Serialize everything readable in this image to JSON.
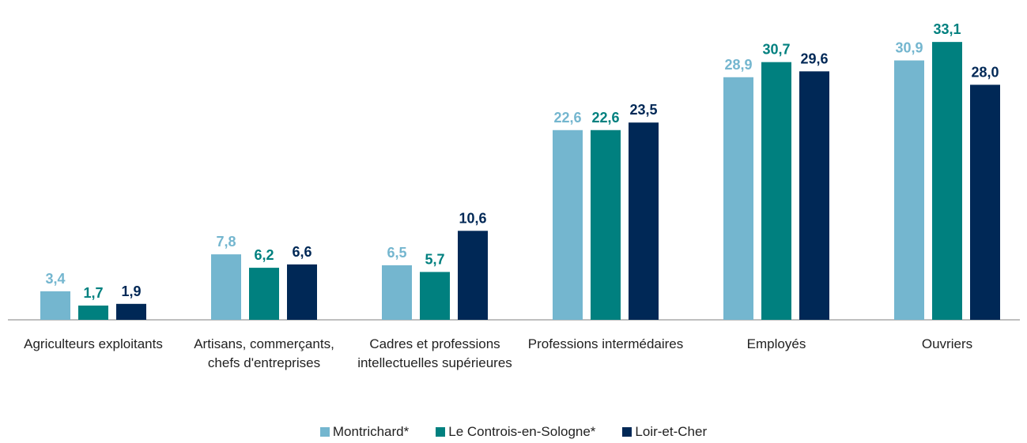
{
  "chart_data": {
    "type": "bar",
    "categories": [
      "Agriculteurs exploitants",
      "Artisans, commerçants, chefs d'entreprises",
      "Cadres et professions intellectuelles supérieures",
      "Professions intermédaires",
      "Employés",
      "Ouvriers"
    ],
    "series": [
      {
        "name": "Montrichard*",
        "color": "#74b6cf",
        "values": [
          3.4,
          7.8,
          6.5,
          22.6,
          28.9,
          30.9
        ],
        "value_labels": [
          "3,4",
          "7,8",
          "6,5",
          "22,6",
          "28,9",
          "30,9"
        ]
      },
      {
        "name": "Le Controis-en-Sologne*",
        "color": "#00807f",
        "values": [
          1.7,
          6.2,
          5.7,
          22.6,
          30.7,
          33.1
        ],
        "value_labels": [
          "1,7",
          "6,2",
          "5,7",
          "22,6",
          "30,7",
          "33,1"
        ]
      },
      {
        "name": "Loir-et-Cher",
        "color": "#002856",
        "values": [
          1.9,
          6.6,
          10.6,
          23.5,
          29.6,
          28.0
        ],
        "value_labels": [
          "1,9",
          "6,6",
          "10,6",
          "23,5",
          "29,6",
          "28,0"
        ]
      }
    ],
    "ylim": [
      0,
      35
    ],
    "legend": "bottom"
  }
}
